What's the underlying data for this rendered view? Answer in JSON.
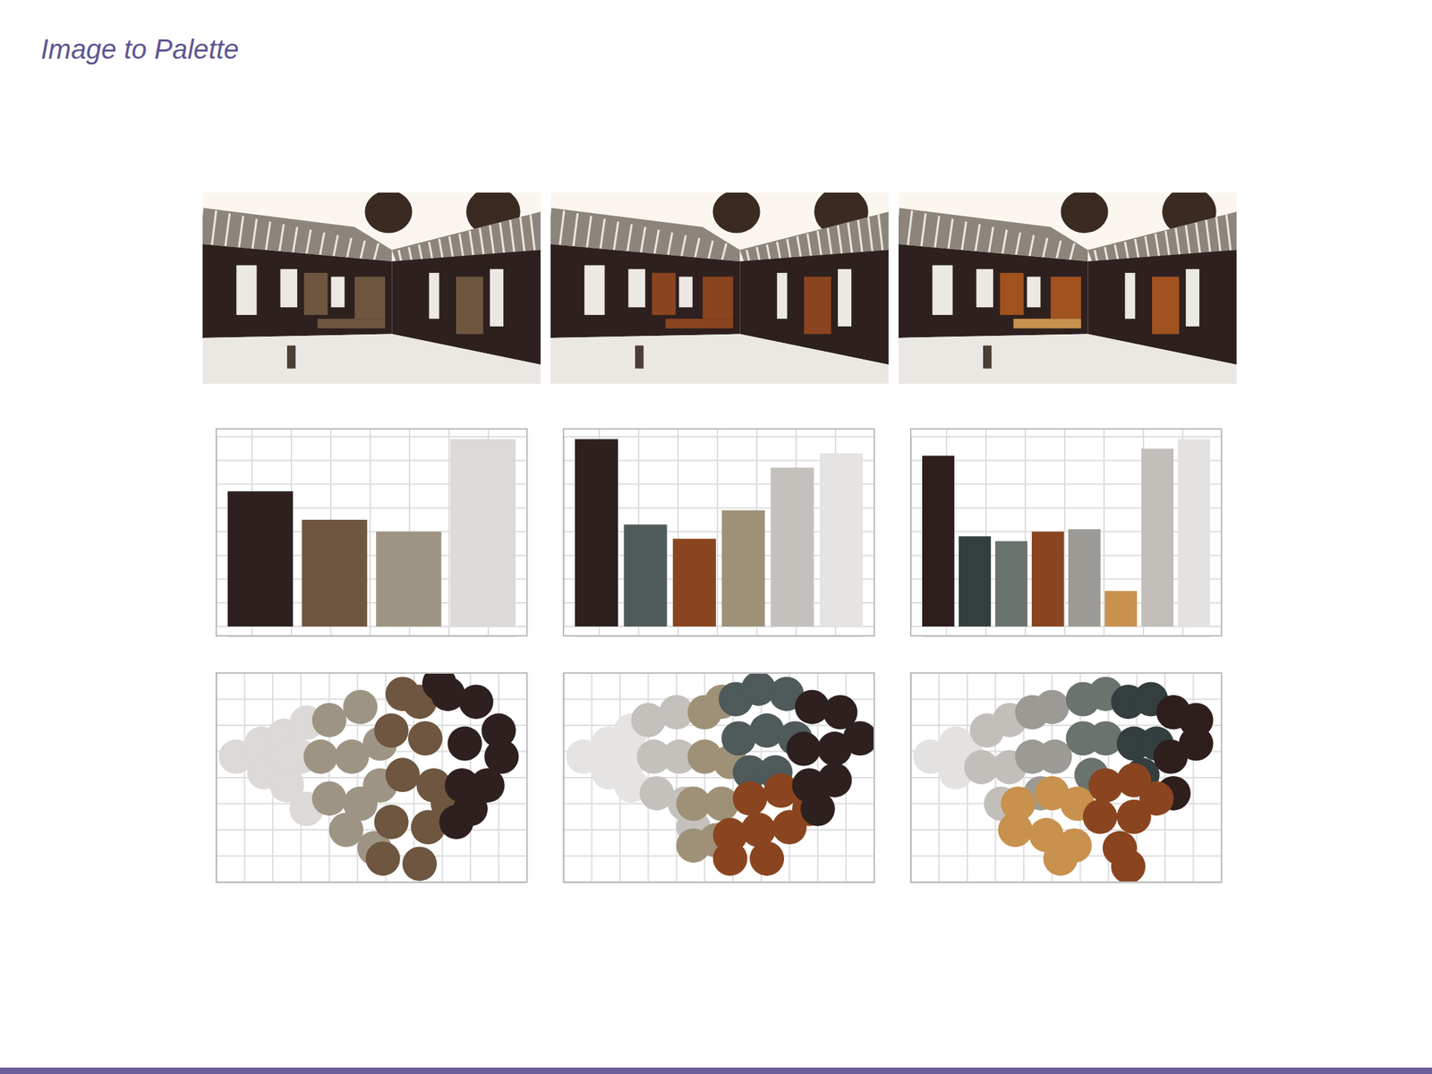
{
  "title": "Image to Palette",
  "chart_data": [
    {
      "type": "bar",
      "categories": [
        null,
        null,
        null,
        null
      ],
      "values": [
        5.7,
        4.5,
        4.0,
        7.9
      ],
      "colors": [
        "#2e201e",
        "#6e5640",
        "#9e9484",
        "#dcd9d6"
      ],
      "ylim": [
        0,
        8
      ],
      "yticks": [
        0,
        1,
        2,
        3,
        4,
        5,
        6,
        7,
        8
      ],
      "grid": true,
      "tick_labels": false
    },
    {
      "type": "bar",
      "categories": [
        null,
        null,
        null,
        null,
        null,
        null
      ],
      "values": [
        7.9,
        4.3,
        3.7,
        4.9,
        6.7,
        7.3
      ],
      "colors": [
        "#2e201e",
        "#4f5a5a",
        "#8a4520",
        "#9e9178",
        "#c4c1bd",
        "#e6e4e2"
      ],
      "ylim": [
        0,
        8
      ],
      "yticks": [
        0,
        1,
        2,
        3,
        4,
        5,
        6,
        7,
        8
      ],
      "grid": true,
      "tick_labels": false
    },
    {
      "type": "bar",
      "categories": [
        null,
        null,
        null,
        null,
        null,
        null,
        null,
        null
      ],
      "values": [
        7.2,
        3.8,
        3.6,
        4.0,
        4.1,
        1.5,
        7.5,
        7.9
      ],
      "colors": [
        "#2e1e1c",
        "#343e3e",
        "#6a736c",
        "#8a4520",
        "#9c9a94",
        "#c8914e",
        "#c2bfbb",
        "#e4e2e0"
      ],
      "ylim": [
        0,
        8
      ],
      "yticks": [
        0,
        1,
        2,
        3,
        4,
        5,
        6,
        7,
        8
      ],
      "grid": true,
      "tick_labels": false
    },
    {
      "type": "scatter",
      "series": [
        {
          "color": "#dcd9d6",
          "x": [
            0.7,
            1.6,
            2.4,
            3.2,
            1.7,
            2.5,
            3.2,
            3.0,
            2.5
          ],
          "values": [
            4.8,
            5.3,
            5.6,
            6.1,
            4.2,
            3.7,
            2.8,
            4.8,
            4.8
          ]
        },
        {
          "color": "#9e9484",
          "x": [
            4.0,
            5.1,
            3.7,
            4.8,
            5.8,
            4.0,
            5.1,
            5.6,
            4.6,
            5.8
          ],
          "values": [
            6.2,
            6.7,
            4.8,
            4.8,
            5.3,
            3.2,
            3.0,
            1.3,
            2.0,
            3.7
          ]
        },
        {
          "color": "#6e5640",
          "x": [
            6.6,
            7.2,
            6.2,
            7.4,
            6.6,
            7.7,
            6.2,
            7.5,
            5.9,
            7.2,
            8.2
          ],
          "values": [
            7.2,
            6.9,
            5.8,
            5.5,
            4.1,
            3.7,
            2.3,
            2.1,
            0.9,
            0.7,
            3.0
          ]
        },
        {
          "color": "#2e201e",
          "x": [
            8.2,
            9.2,
            10.0,
            8.8,
            10.1,
            8.7,
            9.6,
            8.5,
            7.9,
            9.0
          ],
          "values": [
            7.2,
            6.9,
            5.8,
            5.3,
            4.8,
            3.7,
            3.7,
            2.3,
            7.6,
            2.8
          ]
        }
      ],
      "xlim": [
        0,
        11
      ],
      "ylim": [
        0,
        8
      ],
      "xticks": [
        0,
        1,
        2,
        3,
        4,
        5,
        6,
        7,
        8,
        9,
        10,
        11
      ],
      "yticks": [
        0,
        1,
        2,
        3,
        4,
        5,
        6,
        7,
        8
      ],
      "grid": true,
      "tick_labels": false
    },
    {
      "type": "scatter",
      "series": [
        {
          "color": "#e6e4e2",
          "x": [
            0.7,
            1.6,
            2.4,
            1.6,
            2.4,
            2.5
          ],
          "values": [
            4.8,
            5.3,
            5.8,
            4.2,
            3.7,
            4.8
          ]
        },
        {
          "color": "#c4c1bd",
          "x": [
            3.0,
            4.0,
            3.2,
            4.1,
            3.3,
            4.3,
            4.6
          ],
          "values": [
            6.2,
            6.5,
            4.8,
            4.8,
            3.4,
            3.0,
            2.1
          ]
        },
        {
          "color": "#9e9178",
          "x": [
            5.0,
            5.6,
            5.0,
            5.9,
            4.6,
            5.6,
            4.6,
            5.4
          ],
          "values": [
            6.5,
            6.9,
            4.8,
            4.6,
            3.0,
            3.0,
            1.4,
            1.6
          ]
        },
        {
          "color": "#4f5a5a",
          "x": [
            6.1,
            6.9,
            7.9,
            6.2,
            7.2,
            8.2,
            6.6,
            7.5
          ],
          "values": [
            7.0,
            7.4,
            7.2,
            5.5,
            5.8,
            5.5,
            4.2,
            4.2
          ]
        },
        {
          "color": "#8a4520",
          "x": [
            6.6,
            7.7,
            8.7,
            5.9,
            6.9,
            8.0,
            5.9,
            7.2
          ],
          "values": [
            3.2,
            3.5,
            2.8,
            1.8,
            2.0,
            2.1,
            0.9,
            0.9
          ]
        },
        {
          "color": "#2e201e",
          "x": [
            8.8,
            9.8,
            8.5,
            9.6,
            10.5,
            8.7,
            9.6,
            9.0
          ],
          "values": [
            6.7,
            6.5,
            5.1,
            5.1,
            5.5,
            3.7,
            3.9,
            2.8
          ]
        }
      ],
      "xlim": [
        0,
        11
      ],
      "ylim": [
        0,
        8
      ],
      "xticks": [
        0,
        1,
        2,
        3,
        4,
        5,
        6,
        7,
        8,
        9,
        10,
        11
      ],
      "yticks": [
        0,
        1,
        2,
        3,
        4,
        5,
        6,
        7,
        8
      ],
      "grid": true,
      "tick_labels": false
    },
    {
      "type": "scatter",
      "series": [
        {
          "color": "#e4e2e0",
          "x": [
            0.7,
            1.6,
            1.6,
            2.0
          ],
          "values": [
            4.8,
            5.3,
            4.2,
            4.8
          ]
        },
        {
          "color": "#c2bfbb",
          "x": [
            2.7,
            3.5,
            2.5,
            3.5,
            3.2
          ],
          "values": [
            5.8,
            6.2,
            4.4,
            4.4,
            3.0
          ]
        },
        {
          "color": "#9c9a94",
          "x": [
            4.3,
            5.0,
            4.3,
            5.1,
            4.6
          ],
          "values": [
            6.5,
            6.7,
            4.8,
            4.8,
            3.4
          ]
        },
        {
          "color": "#6a736c",
          "x": [
            6.1,
            6.9,
            6.1,
            6.9,
            6.4
          ],
          "values": [
            7.0,
            7.2,
            5.5,
            5.5,
            4.1
          ]
        },
        {
          "color": "#343e3e",
          "x": [
            7.7,
            8.5,
            7.9,
            8.7,
            8.2
          ],
          "values": [
            6.9,
            7.0,
            5.3,
            5.3,
            4.1
          ]
        },
        {
          "color": "#2e1e1c",
          "x": [
            9.3,
            10.1,
            9.2,
            10.1,
            9.3
          ],
          "values": [
            6.5,
            6.2,
            4.8,
            5.3,
            3.4
          ]
        },
        {
          "color": "#c8914e",
          "x": [
            3.8,
            5.0,
            5.9,
            3.7,
            4.8,
            5.8,
            5.3
          ],
          "values": [
            3.0,
            3.4,
            3.0,
            2.0,
            1.8,
            1.4,
            0.9
          ]
        },
        {
          "color": "#8a4520",
          "x": [
            6.9,
            7.9,
            6.7,
            7.9,
            8.7,
            7.4,
            7.7
          ],
          "values": [
            3.7,
            3.9,
            2.5,
            2.5,
            3.2,
            1.3,
            0.6
          ]
        }
      ],
      "xlim": [
        0,
        11
      ],
      "ylim": [
        0,
        8
      ],
      "xticks": [
        0,
        1,
        2,
        3,
        4,
        5,
        6,
        7,
        8,
        9,
        10,
        11
      ],
      "yticks": [
        0,
        1,
        2,
        3,
        4,
        5,
        6,
        7,
        8
      ],
      "grid": true,
      "tick_labels": false
    }
  ]
}
